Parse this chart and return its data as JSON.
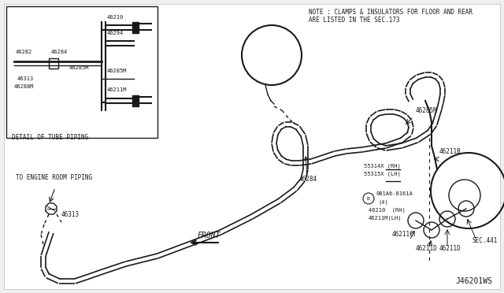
{
  "bg_color": "#efefef",
  "line_color": "#1a1a1a",
  "title": "J46201WS",
  "note_line1": "NOTE : CLAMPS & INSULATORS FOR FLOOR AND REAR",
  "note_line2": "ARE LISTED IN THE SEC.173",
  "front_label": "FRONT",
  "to_engine_label": "TO ENGINE ROOM PIPING",
  "detail_label": "DETAIL OF TUBE PIPING",
  "label_46282": "46282",
  "label_46284_inset": "46284",
  "label_46210_inset": "46210",
  "label_46294": "46294",
  "label_46285M_inset1": "46285M",
  "label_46313_inset": "46313",
  "label_46288M": "46288M",
  "label_46285M_inset2": "46285M",
  "label_46211M_inset": "46211M",
  "label_46284_main": "46284",
  "label_46285M_main": "46285M",
  "label_46313_main": "46313",
  "label_46211B": "46211B",
  "label_55314X": "55314X (RH)",
  "label_55315X": "55315X (LH)",
  "label_B": "B",
  "label_081A6": "081A6-8161A",
  "label_4": "(4)",
  "label_46210_main": "46210  (RH)",
  "label_46211M_main": "46211M(LH)",
  "label_46211C": "46211C",
  "label_46211D_1": "46211D",
  "label_46211D_2": "46211D",
  "label_SEC441": "SEC.441"
}
